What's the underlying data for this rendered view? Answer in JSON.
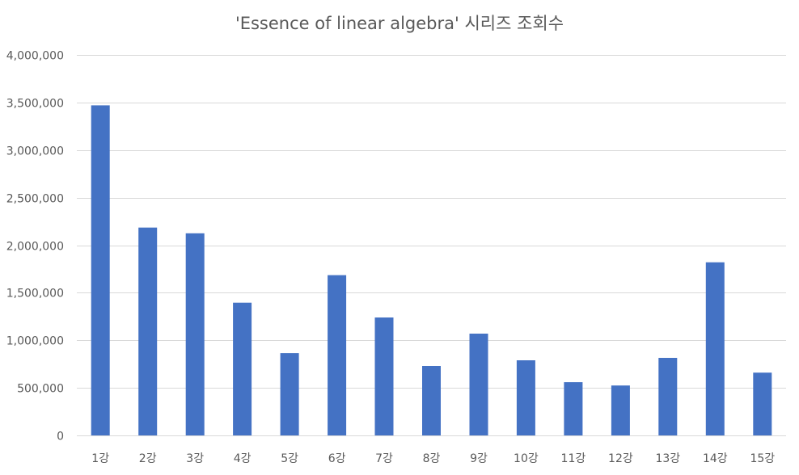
{
  "chart_data": {
    "type": "bar",
    "title": "'Essence of linear algebra' 시리즈 조회수",
    "xlabel": "",
    "ylabel": "",
    "categories": [
      "1강",
      "2강",
      "3강",
      "4강",
      "5강",
      "6강",
      "7강",
      "8강",
      "9강",
      "10강",
      "11강",
      "12강",
      "13강",
      "14강",
      "15강"
    ],
    "values": [
      3470000,
      2185000,
      2125000,
      1395000,
      865000,
      1685000,
      1240000,
      730000,
      1070000,
      790000,
      560000,
      525000,
      815000,
      1820000,
      660000
    ],
    "ylim": [
      0,
      4000000
    ],
    "yticks": [
      0,
      500000,
      1000000,
      1500000,
      2000000,
      2500000,
      3000000,
      3500000,
      4000000
    ],
    "ytick_labels": [
      "0",
      "500,000",
      "1,000,000",
      "1,500,000",
      "2,000,000",
      "2,500,000",
      "3,000,000",
      "3,500,000",
      "4,000,000"
    ],
    "grid": true,
    "legend": "none",
    "bar_color": "#4472c4"
  }
}
